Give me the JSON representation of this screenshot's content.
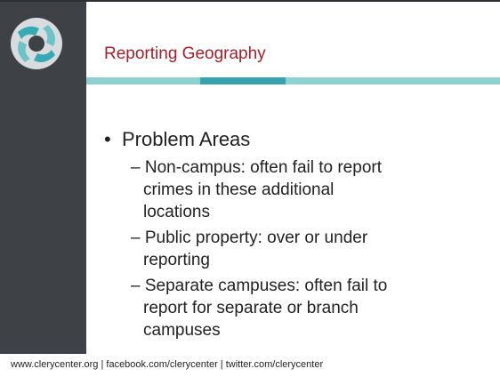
{
  "slide": {
    "title": "Reporting Geography",
    "bullet": "Problem Areas",
    "subitems": [
      "Non-campus: often fail to report crimes in these additional locations",
      "Public property: over or under reporting",
      "Separate campuses: often fail to report for separate or branch campuses"
    ],
    "footer": "www.clerycenter.org | facebook.com/clerycenter | twitter.com/clerycenter"
  }
}
